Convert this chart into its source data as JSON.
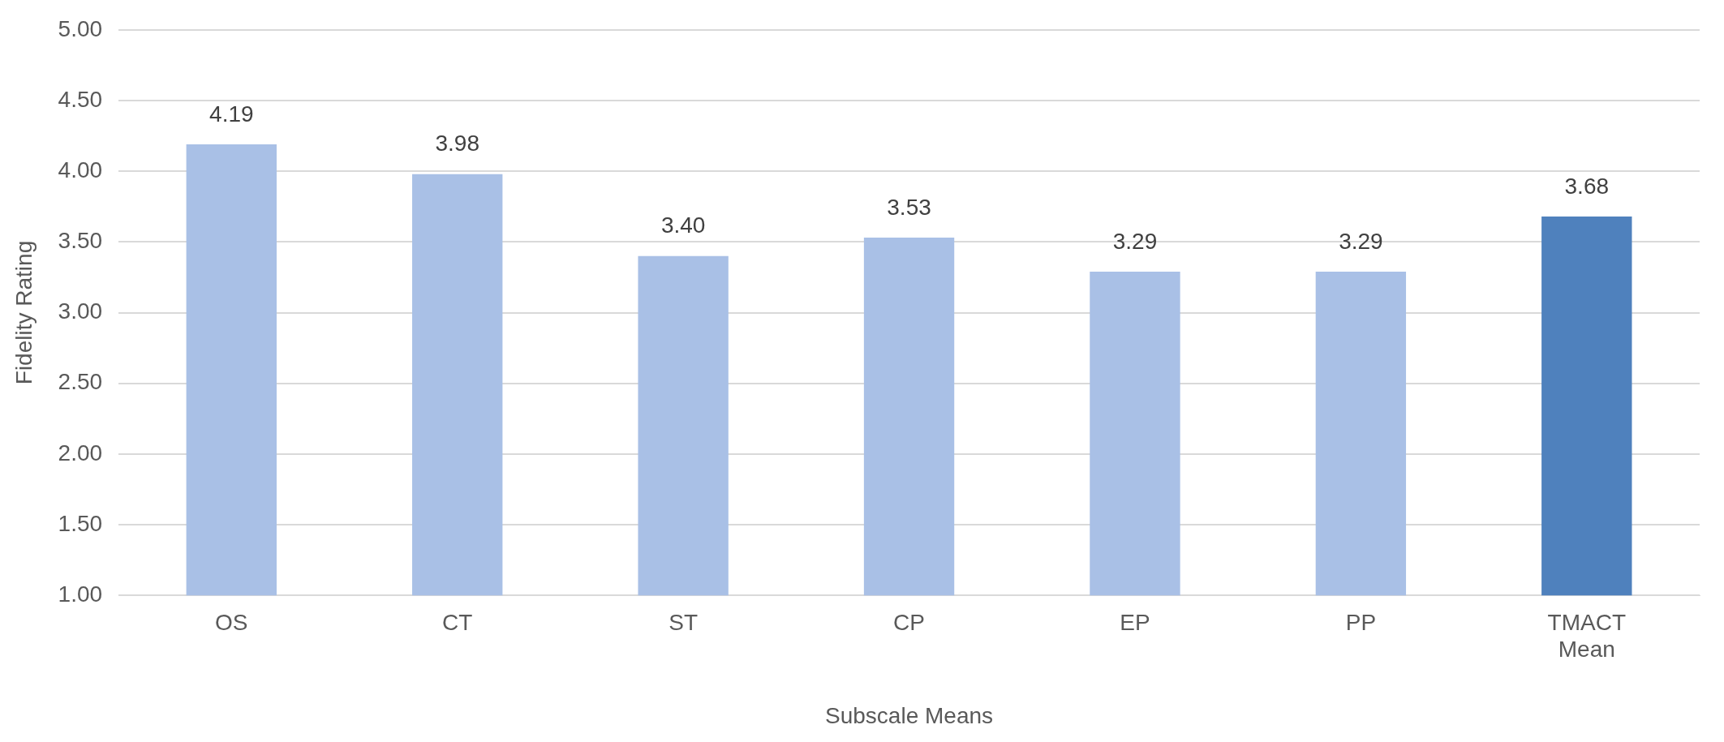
{
  "chart_data": {
    "type": "bar",
    "xlabel": "Subscale Means",
    "ylabel": "Fidelity Rating",
    "categories": [
      "OS",
      "CT",
      "ST",
      "CP",
      "EP",
      "PP",
      "TMACT Mean"
    ],
    "values": [
      4.19,
      3.98,
      3.4,
      3.53,
      3.29,
      3.29,
      3.68
    ],
    "value_labels": [
      "4.19",
      "3.98",
      "3.40",
      "3.53",
      "3.29",
      "3.29",
      "3.68"
    ],
    "colors": [
      "#a9c0e6",
      "#a9c0e6",
      "#a9c0e6",
      "#a9c0e6",
      "#a9c0e6",
      "#a9c0e6",
      "#4f81bd"
    ],
    "ylim": [
      1,
      5
    ],
    "yticks": [
      {
        "value": 1,
        "label": "1.00"
      },
      {
        "value": 1.5,
        "label": "1.50"
      },
      {
        "value": 2,
        "label": "2.00"
      },
      {
        "value": 2.5,
        "label": "2.50"
      },
      {
        "value": 3,
        "label": "3.00"
      },
      {
        "value": 3.5,
        "label": "3.50"
      },
      {
        "value": 4,
        "label": "4.00"
      },
      {
        "value": 4.5,
        "label": "4.50"
      },
      {
        "value": 5,
        "label": "5.00"
      }
    ],
    "grid": "y",
    "legend": false
  }
}
